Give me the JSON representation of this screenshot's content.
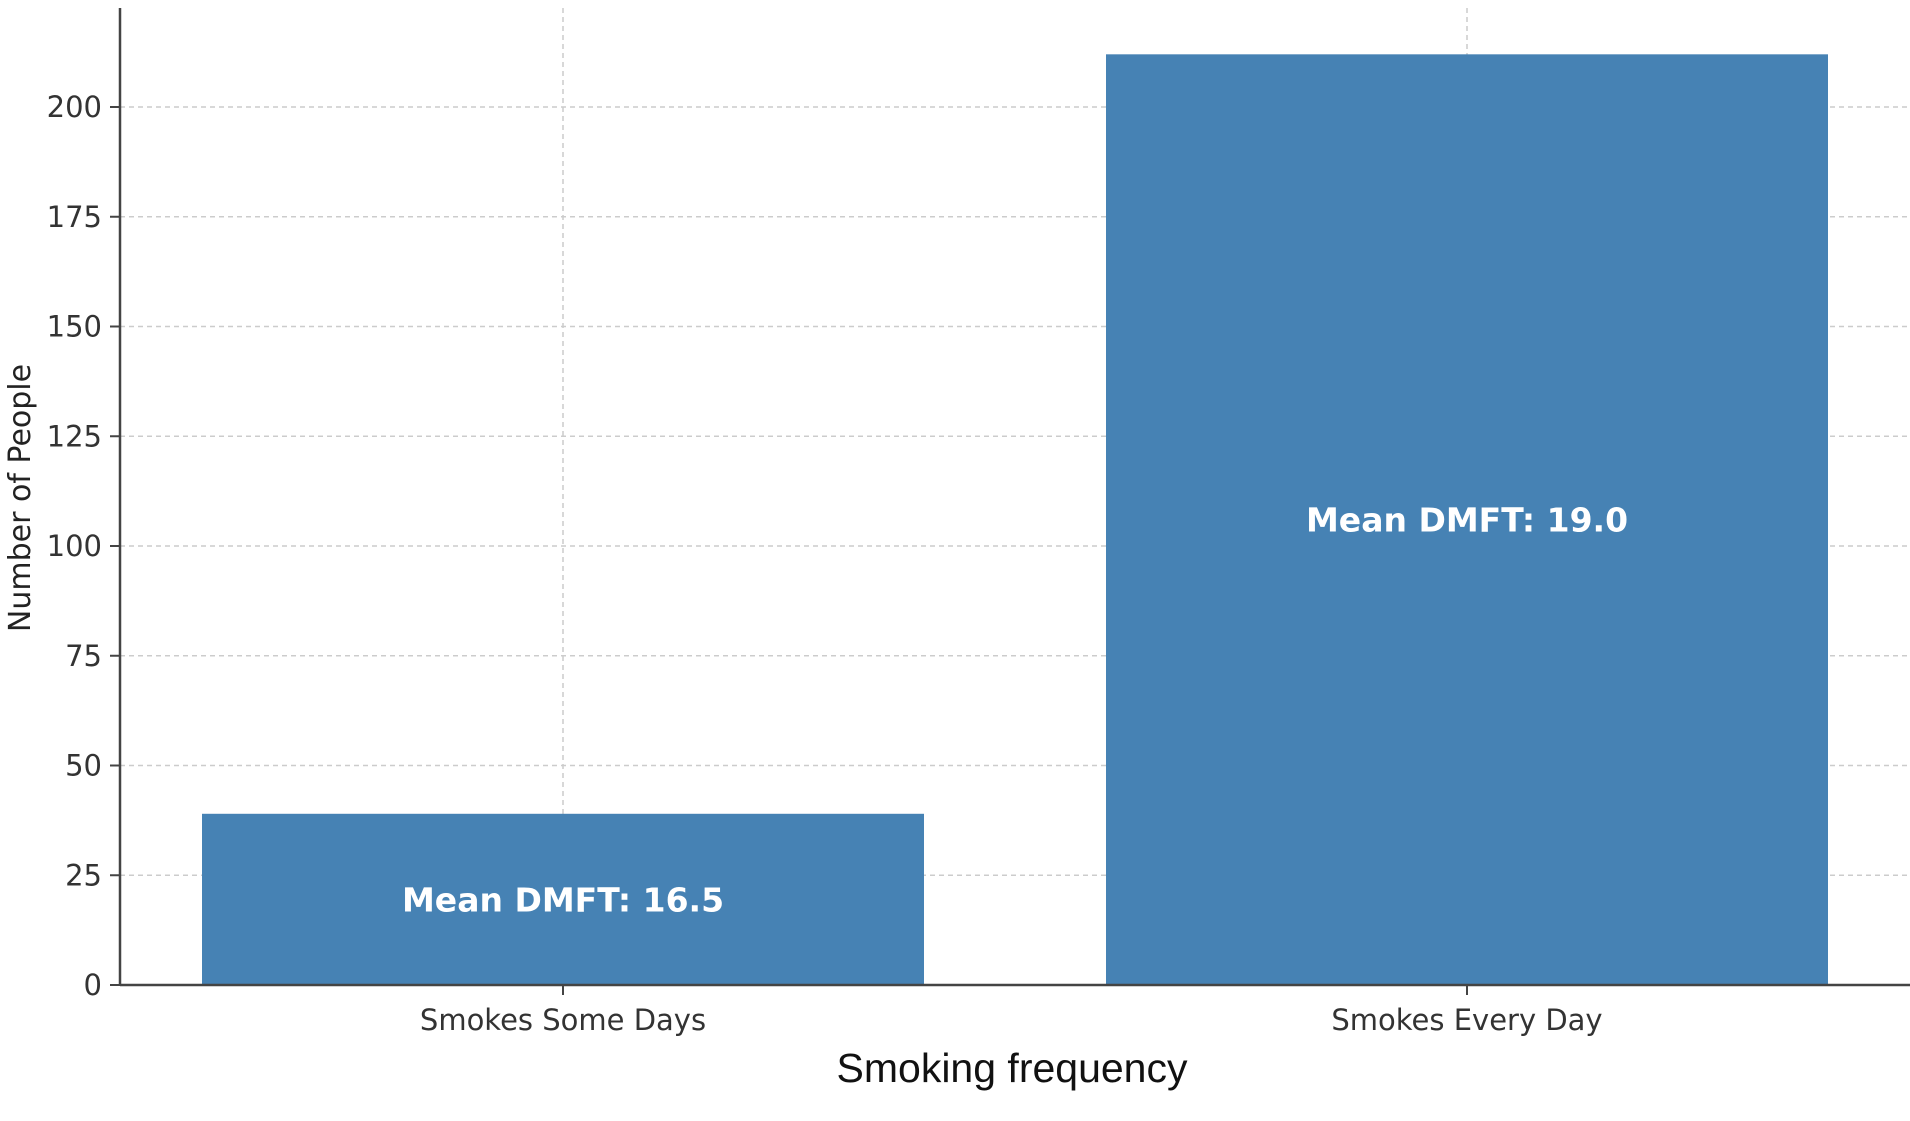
{
  "chart_data": {
    "type": "bar",
    "title": "",
    "xlabel": "Smoking frequency",
    "ylabel": "Number of People",
    "categories": [
      "Smokes Some Days",
      "Smokes Every Day"
    ],
    "values": [
      39,
      212
    ],
    "bar_labels": [
      "Mean DMFT: 16.5",
      "Mean DMFT: 19.0"
    ],
    "ylim": [
      0,
      220
    ],
    "yticks": [
      0,
      25,
      50,
      75,
      100,
      125,
      150,
      175,
      200
    ],
    "ytick_labels": [
      "0",
      "25",
      "50",
      "75",
      "100",
      "125",
      "150",
      "175",
      "200"
    ],
    "grid": true,
    "bar_color": "#4682b4",
    "grid_color": "#cccccc",
    "axis_color": "#444444"
  }
}
